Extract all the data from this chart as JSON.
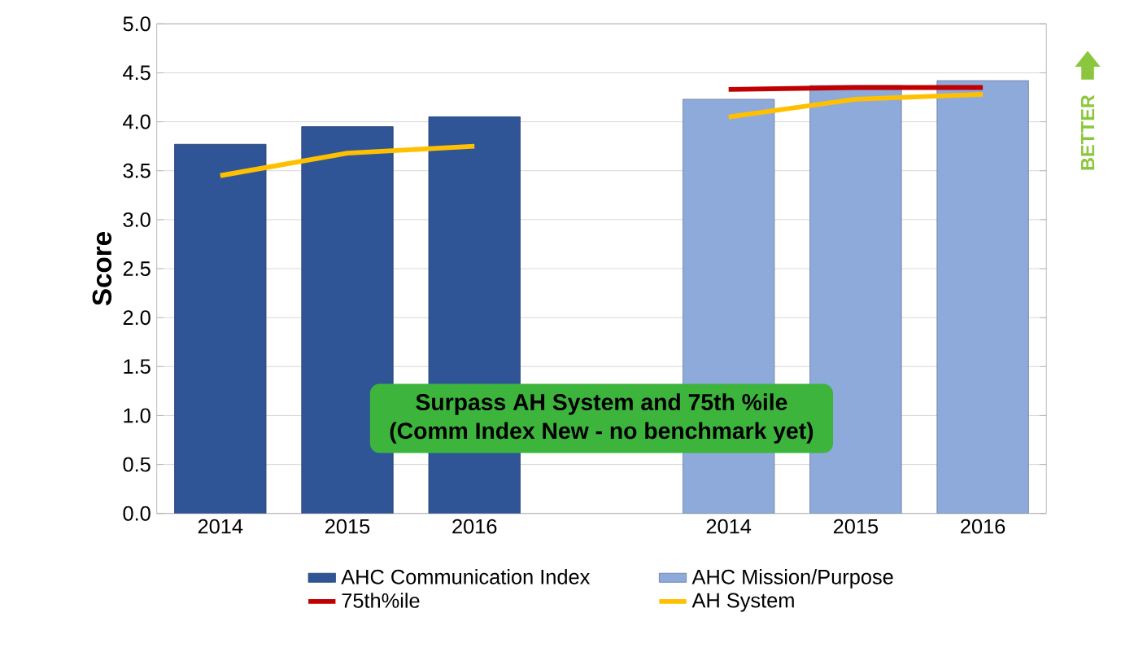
{
  "chart_data": {
    "type": "bar",
    "ylabel": "Score",
    "categories": [
      "2014",
      "2015",
      "2016",
      null,
      "2014",
      "2015",
      "2016"
    ],
    "series": [
      {
        "name": "AHC Communication Index",
        "color": "#2f5597",
        "values": [
          3.77,
          3.95,
          4.05,
          null,
          null,
          null,
          null
        ]
      },
      {
        "name": "AHC Mission/Purpose",
        "color": "#8eaadb",
        "values": [
          null,
          null,
          null,
          null,
          4.23,
          4.37,
          4.42
        ]
      },
      {
        "name": "75th%ile",
        "type": "line",
        "color": "#c00000",
        "values": [
          null,
          null,
          null,
          null,
          4.33,
          4.35,
          4.35
        ]
      },
      {
        "name": "AH System",
        "type": "line",
        "color": "#ffc000",
        "values": [
          3.45,
          3.68,
          3.75,
          null,
          4.05,
          4.23,
          4.28
        ]
      }
    ],
    "ylim": [
      0,
      5
    ],
    "yticks": [
      {
        "value": 0,
        "label": "0.0"
      },
      {
        "value": 0.5,
        "label": "0.5"
      },
      {
        "value": 1,
        "label": "1.0"
      },
      {
        "value": 1.5,
        "label": "1.5"
      },
      {
        "value": 2,
        "label": "2.0"
      },
      {
        "value": 2.5,
        "label": "2.5"
      },
      {
        "value": 3,
        "label": "3.0"
      },
      {
        "value": 3.5,
        "label": "3.5"
      },
      {
        "value": 4,
        "label": "4.0"
      },
      {
        "value": 4.5,
        "label": "4.5"
      },
      {
        "value": 5,
        "label": "5.0"
      }
    ],
    "grid": "y",
    "legend": "bottom",
    "annotations": [
      "Surpass AH System and 75th %ile",
      "(Comm Index New - no benchmark yet)",
      "BETTER"
    ]
  }
}
